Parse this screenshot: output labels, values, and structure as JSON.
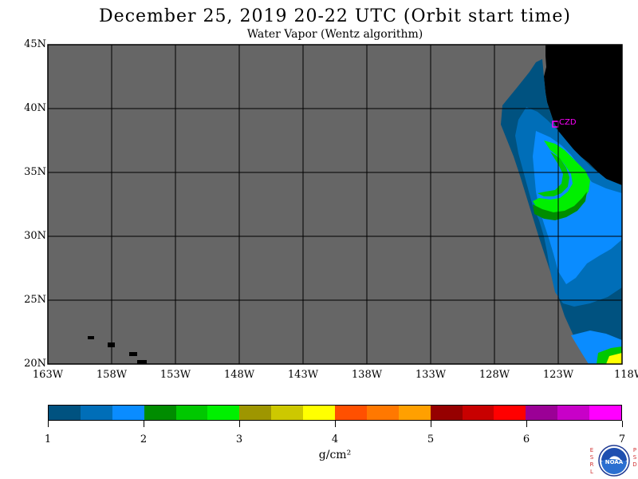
{
  "title": "December 25, 2019  20-22 UTC  (Orbit start time)",
  "subtitle": "Water Vapor (Wentz algorithm)",
  "map": {
    "lat_labels": [
      "45N",
      "40N",
      "35N",
      "30N",
      "25N",
      "20N"
    ],
    "lon_labels": [
      "163W",
      "158W",
      "153W",
      "148W",
      "143W",
      "138W",
      "133W",
      "128W",
      "123W",
      "118W"
    ],
    "station_label": "CZD",
    "colors": {
      "no_data": "#666666",
      "land": "#000000",
      "grid": "#000000",
      "station": "#ff00ff"
    }
  },
  "colorbar": {
    "colors": [
      "#005280",
      "#006eb8",
      "#0a8cff",
      "#008c00",
      "#00c800",
      "#00f000",
      "#9e9600",
      "#cdc800",
      "#ffff00",
      "#ff5000",
      "#ff7800",
      "#ffa000",
      "#960000",
      "#c80000",
      "#ff0000",
      "#9b0096",
      "#c800c8",
      "#ff00ff"
    ],
    "tick_labels": [
      "1",
      "2",
      "3",
      "4",
      "5",
      "6",
      "7"
    ],
    "unit": "g/cm²"
  },
  "logo": {
    "left_letters": "ESRL",
    "right_letters": "PSD",
    "noaa_text": "NOAA"
  }
}
